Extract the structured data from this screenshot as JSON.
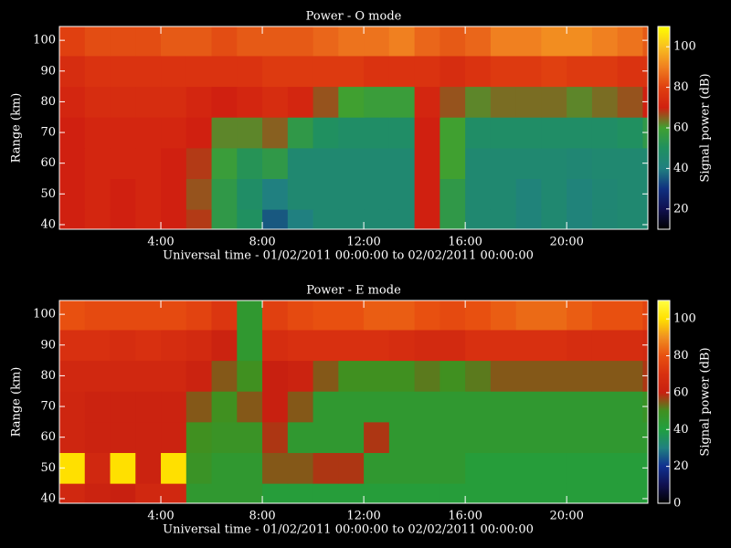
{
  "chart_data": [
    {
      "type": "heatmap",
      "title": "Power - O mode",
      "xlabel": "Universal time - 01/02/2011 00:00:00 to 02/02/2011 00:00:00",
      "ylabel": "Range (km)",
      "colorbar_label": "Signal power (dB)",
      "x_edges": [
        0,
        1,
        2,
        3,
        4,
        5,
        6,
        7,
        8,
        9,
        10,
        11,
        12,
        13,
        14,
        15,
        16,
        17,
        18,
        19,
        20,
        21,
        22,
        23,
        24
      ],
      "y_edges": [
        35,
        45,
        55,
        65,
        75,
        85,
        95,
        105
      ],
      "z": [
        [
          70,
          72,
          70,
          72,
          70,
          68,
          55,
          50,
          35,
          40,
          45,
          45,
          45,
          45,
          70,
          55,
          45,
          45,
          42,
          45,
          42,
          44,
          45,
          45
        ],
        [
          70,
          72,
          70,
          72,
          70,
          66,
          55,
          48,
          40,
          45,
          45,
          45,
          45,
          45,
          70,
          55,
          45,
          45,
          42,
          45,
          42,
          44,
          45,
          45
        ],
        [
          70,
          72,
          72,
          72,
          70,
          68,
          58,
          52,
          55,
          45,
          45,
          45,
          45,
          45,
          70,
          60,
          45,
          45,
          45,
          45,
          44,
          45,
          45,
          45
        ],
        [
          70,
          72,
          72,
          72,
          72,
          70,
          62,
          62,
          65,
          55,
          50,
          48,
          48,
          48,
          70,
          60,
          48,
          48,
          48,
          48,
          48,
          48,
          50,
          55
        ],
        [
          72,
          74,
          74,
          74,
          74,
          72,
          70,
          72,
          74,
          72,
          66,
          60,
          58,
          58,
          72,
          66,
          62,
          64,
          64,
          64,
          62,
          64,
          66,
          70
        ],
        [
          74,
          76,
          76,
          76,
          76,
          76,
          76,
          76,
          78,
          78,
          78,
          78,
          76,
          76,
          76,
          74,
          76,
          78,
          78,
          80,
          78,
          78,
          76,
          76
        ],
        [
          80,
          82,
          82,
          82,
          84,
          84,
          82,
          84,
          84,
          84,
          86,
          88,
          88,
          90,
          86,
          84,
          86,
          90,
          90,
          92,
          92,
          90,
          88,
          84
        ]
      ],
      "xlim": [
        0,
        23.2
      ],
      "ylim": [
        38.5,
        104.5
      ],
      "xticks": [
        {
          "value": 4,
          "label": "4:00"
        },
        {
          "value": 8,
          "label": "8:00"
        },
        {
          "value": 12,
          "label": "12:00"
        },
        {
          "value": 16,
          "label": "16:00"
        },
        {
          "value": 20,
          "label": "20:00"
        }
      ],
      "yticks": [
        40,
        50,
        60,
        70,
        80,
        90,
        100
      ],
      "clim": [
        10,
        110
      ],
      "cticks": [
        20,
        40,
        60,
        80,
        100
      ],
      "colormap": [
        "#000000",
        "#101050",
        "#103080",
        "#208080",
        "#209060",
        "#40a030",
        "#d02010",
        "#e04010",
        "#f08020",
        "#f8c020",
        "#ffff00"
      ]
    },
    {
      "type": "heatmap",
      "title": "Power - E mode",
      "xlabel": "Universal time - 01/02/2011 00:00:00 to 02/02/2011 00:00:00",
      "ylabel": "Range (km)",
      "colorbar_label": "Signal power (dB)",
      "x_edges": [
        0,
        1,
        2,
        3,
        4,
        5,
        6,
        7,
        8,
        9,
        10,
        11,
        12,
        13,
        14,
        15,
        16,
        17,
        18,
        19,
        20,
        21,
        22,
        23,
        24
      ],
      "y_edges": [
        35,
        45,
        55,
        65,
        75,
        85,
        95,
        105
      ],
      "z": [
        [
          65,
          62,
          60,
          65,
          65,
          45,
          45,
          45,
          42,
          42,
          42,
          42,
          42,
          42,
          42,
          42,
          42,
          42,
          42,
          42,
          42,
          42,
          42,
          42
        ],
        [
          100,
          65,
          100,
          62,
          100,
          48,
          45,
          45,
          55,
          55,
          58,
          58,
          45,
          45,
          45,
          45,
          42,
          42,
          42,
          42,
          42,
          42,
          42,
          42
        ],
        [
          64,
          62,
          62,
          62,
          62,
          50,
          48,
          48,
          58,
          45,
          45,
          45,
          58,
          45,
          45,
          45,
          45,
          45,
          45,
          45,
          45,
          45,
          45,
          45
        ],
        [
          64,
          62,
          62,
          62,
          62,
          55,
          50,
          55,
          60,
          55,
          45,
          45,
          45,
          45,
          45,
          45,
          45,
          45,
          45,
          45,
          45,
          45,
          45,
          48
        ],
        [
          65,
          65,
          65,
          65,
          65,
          62,
          55,
          50,
          60,
          62,
          55,
          50,
          50,
          50,
          52,
          50,
          52,
          55,
          55,
          55,
          55,
          55,
          55,
          58
        ],
        [
          70,
          70,
          68,
          70,
          68,
          66,
          62,
          45,
          68,
          70,
          70,
          70,
          70,
          68,
          66,
          66,
          70,
          70,
          70,
          70,
          68,
          68,
          68,
          66
        ],
        [
          80,
          78,
          78,
          78,
          78,
          76,
          72,
          45,
          75,
          78,
          80,
          80,
          82,
          82,
          80,
          78,
          80,
          82,
          84,
          84,
          82,
          80,
          80,
          76
        ]
      ],
      "xlim": [
        0,
        23.2
      ],
      "ylim": [
        38.5,
        104.5
      ],
      "xticks": [
        {
          "value": 4,
          "label": "4:00"
        },
        {
          "value": 8,
          "label": "8:00"
        },
        {
          "value": 12,
          "label": "12:00"
        },
        {
          "value": 16,
          "label": "16:00"
        },
        {
          "value": 20,
          "label": "20:00"
        }
      ],
      "yticks": [
        40,
        50,
        60,
        70,
        80,
        90,
        100
      ],
      "clim": [
        0,
        110
      ],
      "cticks": [
        0,
        20,
        40,
        60,
        80,
        100
      ],
      "colormap": [
        "#000000",
        "#101050",
        "#103090",
        "#208080",
        "#20a040",
        "#409020",
        "#c82010",
        "#d83010",
        "#e85010",
        "#f09020",
        "#ffe000",
        "#ffff40"
      ]
    }
  ]
}
